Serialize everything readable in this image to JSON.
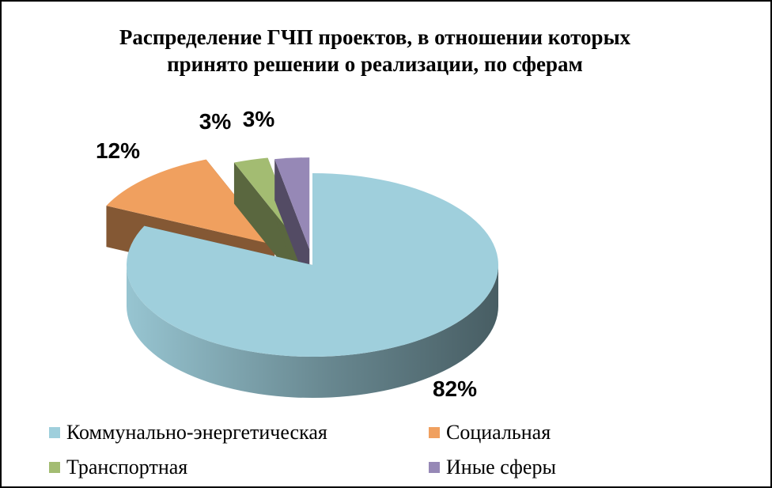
{
  "chart_data": {
    "type": "pie",
    "title": "Распределение  ГЧП проектов, в отношении которых принято решении о реализации, по сферам",
    "title_lines": [
      "Распределение  ГЧП проектов, в отношении которых",
      "принято решении о реализации, по сферам"
    ],
    "categories": [
      "Коммунально-энергетическая",
      "Социальная",
      "Транспортная",
      "Иные сферы"
    ],
    "values": [
      82,
      12,
      3,
      3
    ],
    "labels": [
      "82%",
      "12%",
      "3%",
      "3%"
    ],
    "colors": [
      "#9fcfdc",
      "#f0a05f",
      "#a3bc72",
      "#9688b6"
    ],
    "legend_position": "bottom",
    "style": "3d-exploded"
  }
}
